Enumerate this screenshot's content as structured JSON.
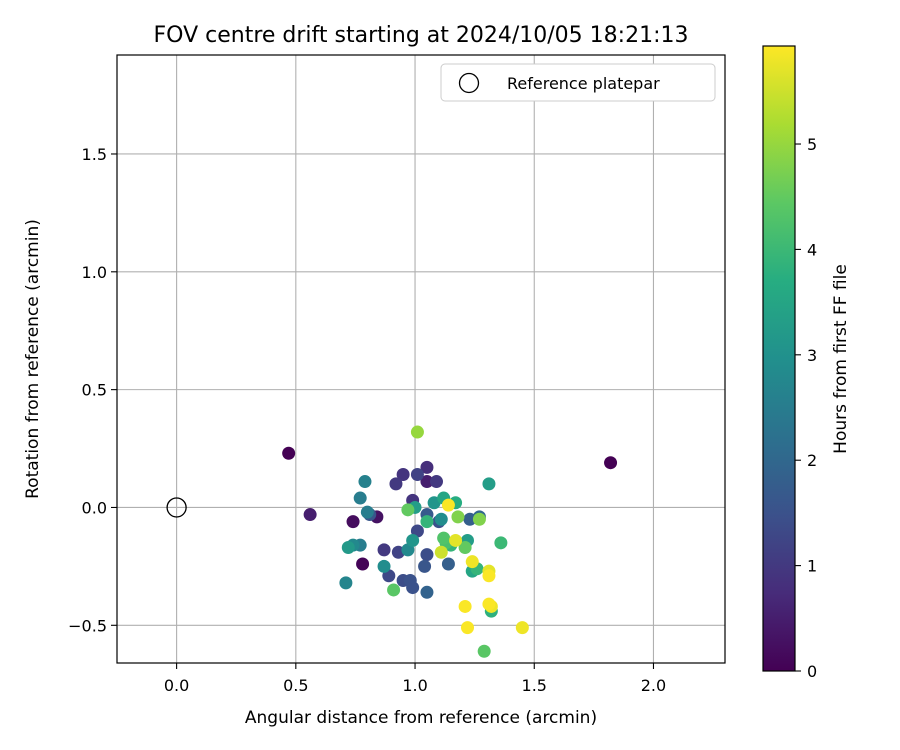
{
  "chart_data": {
    "type": "scatter",
    "title": "FOV centre drift starting at 2024/10/05 18:21:13",
    "xlabel": "Angular distance from reference (arcmin)",
    "ylabel": "Rotation from reference (arcmin)",
    "xlim": [
      -0.25,
      2.3
    ],
    "ylim": [
      -0.66,
      1.92
    ],
    "xticks": [
      0.0,
      0.5,
      1.0,
      1.5,
      2.0
    ],
    "xtick_labels": [
      "0.0",
      "0.5",
      "1.0",
      "1.5",
      "2.0"
    ],
    "yticks": [
      -0.5,
      0.0,
      0.5,
      1.0,
      1.5
    ],
    "ytick_labels": [
      "−0.5",
      "0.0",
      "0.5",
      "1.0",
      "1.5"
    ],
    "grid": true,
    "legend": {
      "location": "top-right",
      "entries": [
        "Reference platepar"
      ]
    },
    "reference_point": {
      "name": "Reference platepar",
      "x": 0.0,
      "y": 0.0,
      "marker": "hollow-circle"
    },
    "colorbar": {
      "label": "Hours from first FF file",
      "range": [
        0,
        5.93
      ],
      "ticks": [
        0,
        1,
        2,
        3,
        4,
        5
      ],
      "tick_labels": [
        "0",
        "1",
        "2",
        "3",
        "4",
        "5"
      ],
      "colormap": [
        "#440154",
        "#472c7a",
        "#3b518b",
        "#2c718e",
        "#21908d",
        "#27ad81",
        "#5cc863",
        "#aadc32",
        "#fde725"
      ]
    },
    "points": [
      {
        "x": 0.47,
        "y": 0.23,
        "hours": 0.0
      },
      {
        "x": 1.82,
        "y": 0.19,
        "hours": 0.0
      },
      {
        "x": 0.78,
        "y": -0.24,
        "hours": 0.05
      },
      {
        "x": 0.74,
        "y": -0.06,
        "hours": 0.2
      },
      {
        "x": 0.84,
        "y": -0.04,
        "hours": 0.3
      },
      {
        "x": 0.56,
        "y": -0.03,
        "hours": 0.5
      },
      {
        "x": 1.05,
        "y": 0.11,
        "hours": 0.5
      },
      {
        "x": 1.05,
        "y": 0.17,
        "hours": 0.8
      },
      {
        "x": 0.95,
        "y": 0.14,
        "hours": 0.9
      },
      {
        "x": 0.92,
        "y": 0.1,
        "hours": 1.0
      },
      {
        "x": 0.99,
        "y": 0.03,
        "hours": 0.9
      },
      {
        "x": 1.09,
        "y": 0.11,
        "hours": 1.0
      },
      {
        "x": 1.01,
        "y": 0.14,
        "hours": 1.2
      },
      {
        "x": 0.87,
        "y": -0.18,
        "hours": 1.0
      },
      {
        "x": 0.93,
        "y": -0.19,
        "hours": 1.2
      },
      {
        "x": 0.89,
        "y": -0.29,
        "hours": 1.3
      },
      {
        "x": 0.95,
        "y": -0.31,
        "hours": 1.4
      },
      {
        "x": 0.98,
        "y": -0.31,
        "hours": 1.5
      },
      {
        "x": 0.99,
        "y": -0.34,
        "hours": 1.5
      },
      {
        "x": 1.01,
        "y": -0.1,
        "hours": 1.3
      },
      {
        "x": 1.05,
        "y": -0.2,
        "hours": 1.4
      },
      {
        "x": 1.04,
        "y": -0.25,
        "hours": 1.6
      },
      {
        "x": 1.05,
        "y": -0.36,
        "hours": 1.9
      },
      {
        "x": 1.1,
        "y": -0.06,
        "hours": 1.5
      },
      {
        "x": 1.05,
        "y": -0.03,
        "hours": 1.7
      },
      {
        "x": 1.14,
        "y": -0.24,
        "hours": 1.8
      },
      {
        "x": 1.23,
        "y": -0.05,
        "hours": 1.8
      },
      {
        "x": 1.27,
        "y": -0.04,
        "hours": 2.0
      },
      {
        "x": 0.81,
        "y": -0.03,
        "hours": 1.6
      },
      {
        "x": 0.8,
        "y": -0.02,
        "hours": 2.5
      },
      {
        "x": 0.77,
        "y": -0.16,
        "hours": 2.5
      },
      {
        "x": 0.77,
        "y": 0.04,
        "hours": 2.5
      },
      {
        "x": 0.79,
        "y": 0.11,
        "hours": 2.6
      },
      {
        "x": 0.74,
        "y": -0.16,
        "hours": 2.8
      },
      {
        "x": 0.72,
        "y": -0.17,
        "hours": 3.2
      },
      {
        "x": 0.71,
        "y": -0.32,
        "hours": 2.7
      },
      {
        "x": 0.87,
        "y": -0.25,
        "hours": 2.9
      },
      {
        "x": 0.97,
        "y": -0.18,
        "hours": 2.8
      },
      {
        "x": 0.99,
        "y": -0.14,
        "hours": 3.1
      },
      {
        "x": 1.0,
        "y": 0.0,
        "hours": 3.3
      },
      {
        "x": 1.08,
        "y": 0.02,
        "hours": 3.1
      },
      {
        "x": 1.11,
        "y": -0.05,
        "hours": 2.9
      },
      {
        "x": 1.12,
        "y": 0.04,
        "hours": 3.5
      },
      {
        "x": 1.17,
        "y": 0.02,
        "hours": 3.7
      },
      {
        "x": 1.31,
        "y": 0.1,
        "hours": 3.3
      },
      {
        "x": 1.22,
        "y": -0.14,
        "hours": 3.3
      },
      {
        "x": 1.24,
        "y": -0.27,
        "hours": 3.5
      },
      {
        "x": 1.26,
        "y": -0.26,
        "hours": 3.9
      },
      {
        "x": 1.32,
        "y": -0.44,
        "hours": 3.8
      },
      {
        "x": 1.36,
        "y": -0.15,
        "hours": 4.0
      },
      {
        "x": 1.15,
        "y": -0.16,
        "hours": 3.9
      },
      {
        "x": 1.13,
        "y": -0.15,
        "hours": 4.2
      },
      {
        "x": 1.05,
        "y": -0.06,
        "hours": 3.9
      },
      {
        "x": 0.97,
        "y": -0.01,
        "hours": 4.5
      },
      {
        "x": 0.91,
        "y": -0.35,
        "hours": 4.4
      },
      {
        "x": 1.12,
        "y": -0.13,
        "hours": 4.3
      },
      {
        "x": 1.21,
        "y": -0.17,
        "hours": 4.5
      },
      {
        "x": 1.18,
        "y": -0.04,
        "hours": 4.8
      },
      {
        "x": 1.27,
        "y": -0.05,
        "hours": 4.8
      },
      {
        "x": 1.29,
        "y": -0.61,
        "hours": 4.4
      },
      {
        "x": 1.01,
        "y": 0.32,
        "hours": 5.0
      },
      {
        "x": 1.14,
        "y": 0.01,
        "hours": 5.9
      },
      {
        "x": 1.11,
        "y": -0.19,
        "hours": 5.5
      },
      {
        "x": 1.17,
        "y": -0.14,
        "hours": 5.7
      },
      {
        "x": 1.24,
        "y": -0.23,
        "hours": 5.8
      },
      {
        "x": 1.31,
        "y": -0.27,
        "hours": 5.7
      },
      {
        "x": 1.31,
        "y": -0.29,
        "hours": 5.9
      },
      {
        "x": 1.31,
        "y": -0.41,
        "hours": 5.9
      },
      {
        "x": 1.32,
        "y": -0.42,
        "hours": 5.8
      },
      {
        "x": 1.21,
        "y": -0.42,
        "hours": 5.9
      },
      {
        "x": 1.22,
        "y": -0.51,
        "hours": 5.9
      },
      {
        "x": 1.45,
        "y": -0.51,
        "hours": 5.8
      }
    ]
  }
}
